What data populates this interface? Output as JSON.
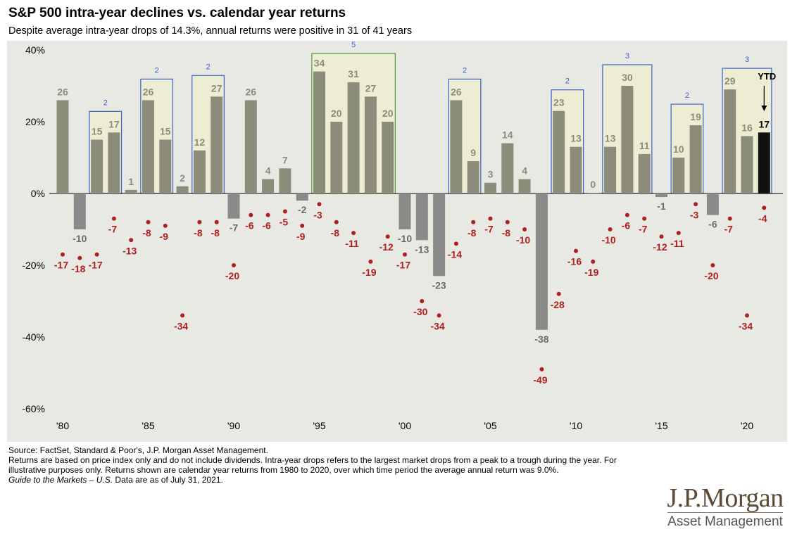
{
  "header": {
    "title": "S&P 500 intra-year declines vs. calendar year returns",
    "subtitle": "Despite average intra-year drops of 14.3%, annual returns were positive in 31 of 41 years"
  },
  "chart_data": {
    "type": "bar",
    "x_start_year": 1980,
    "x_ticks": [
      "'80",
      "'85",
      "'90",
      "'95",
      "'00",
      "'05",
      "'10",
      "'15",
      "'20"
    ],
    "y_ticks": [
      "40%",
      "20%",
      "0%",
      "-20%",
      "-40%",
      "-60%"
    ],
    "ylim": [
      -60,
      40
    ],
    "years": [
      1980,
      1981,
      1982,
      1983,
      1984,
      1985,
      1986,
      1987,
      1988,
      1989,
      1990,
      1991,
      1992,
      1993,
      1994,
      1995,
      1996,
      1997,
      1998,
      1999,
      2000,
      2001,
      2002,
      2003,
      2004,
      2005,
      2006,
      2007,
      2008,
      2009,
      2010,
      2011,
      2012,
      2013,
      2014,
      2015,
      2016,
      2017,
      2018,
      2019,
      2020,
      2021
    ],
    "returns": [
      26,
      -10,
      15,
      17,
      1,
      26,
      15,
      2,
      12,
      27,
      -7,
      26,
      4,
      7,
      -2,
      34,
      20,
      31,
      27,
      20,
      -10,
      -13,
      -23,
      26,
      9,
      3,
      14,
      4,
      -38,
      23,
      13,
      0,
      13,
      30,
      11,
      -1,
      10,
      19,
      -6,
      29,
      16,
      17
    ],
    "declines": [
      -17,
      -18,
      -17,
      -7,
      -13,
      -8,
      -9,
      -34,
      -8,
      -8,
      -20,
      -6,
      -6,
      -5,
      -9,
      -3,
      -8,
      -11,
      -19,
      -12,
      -17,
      -30,
      -34,
      -14,
      -8,
      -7,
      -8,
      -10,
      -49,
      -28,
      -16,
      -19,
      -10,
      -6,
      -7,
      -12,
      -11,
      -3,
      -20,
      -7,
      -34,
      -4
    ],
    "ytd_label": "YTD",
    "streaks": [
      {
        "start": 1982,
        "end": 1983,
        "label": "2"
      },
      {
        "start": 1985,
        "end": 1986,
        "label": "2"
      },
      {
        "start": 1988,
        "end": 1989,
        "label": "2"
      },
      {
        "start": 1995,
        "end": 1999,
        "label": "5"
      },
      {
        "start": 2003,
        "end": 2004,
        "label": "2"
      },
      {
        "start": 2009,
        "end": 2010,
        "label": "2"
      },
      {
        "start": 2012,
        "end": 2014,
        "label": "3"
      },
      {
        "start": 2016,
        "end": 2017,
        "label": "2"
      },
      {
        "start": 2019,
        "end": 2021,
        "label": "3"
      }
    ],
    "colors": {
      "positive_bar": "#8c8c7b",
      "negative_bar": "#8a8a8a",
      "ytd_bar": "#111111",
      "decline_dot": "#b01f1f",
      "streak_box": "#3a5fcd",
      "streak_box_5": "#4b9a3a",
      "streak_fill": "#ededd4",
      "positive_label": "#8c8c7b",
      "negative_label": "#6a6a6a"
    }
  },
  "footer": {
    "source": "Source: FactSet, Standard & Poor's, J.P. Morgan Asset Management.",
    "note": "Returns are based on price index only and do not include dividends. Intra-year drops refers to the largest market drops from a peak to a trough during the year. For illustrative purposes only. Returns shown are calendar year returns from 1980 to 2020, over which time period the average annual return was 9.0%.",
    "guide_title": "Guide to the Markets – U.S.",
    "guide_date": " Data are as of July 31, 2021."
  },
  "logo": {
    "main": "J.P.Morgan",
    "sub": "Asset Management"
  }
}
